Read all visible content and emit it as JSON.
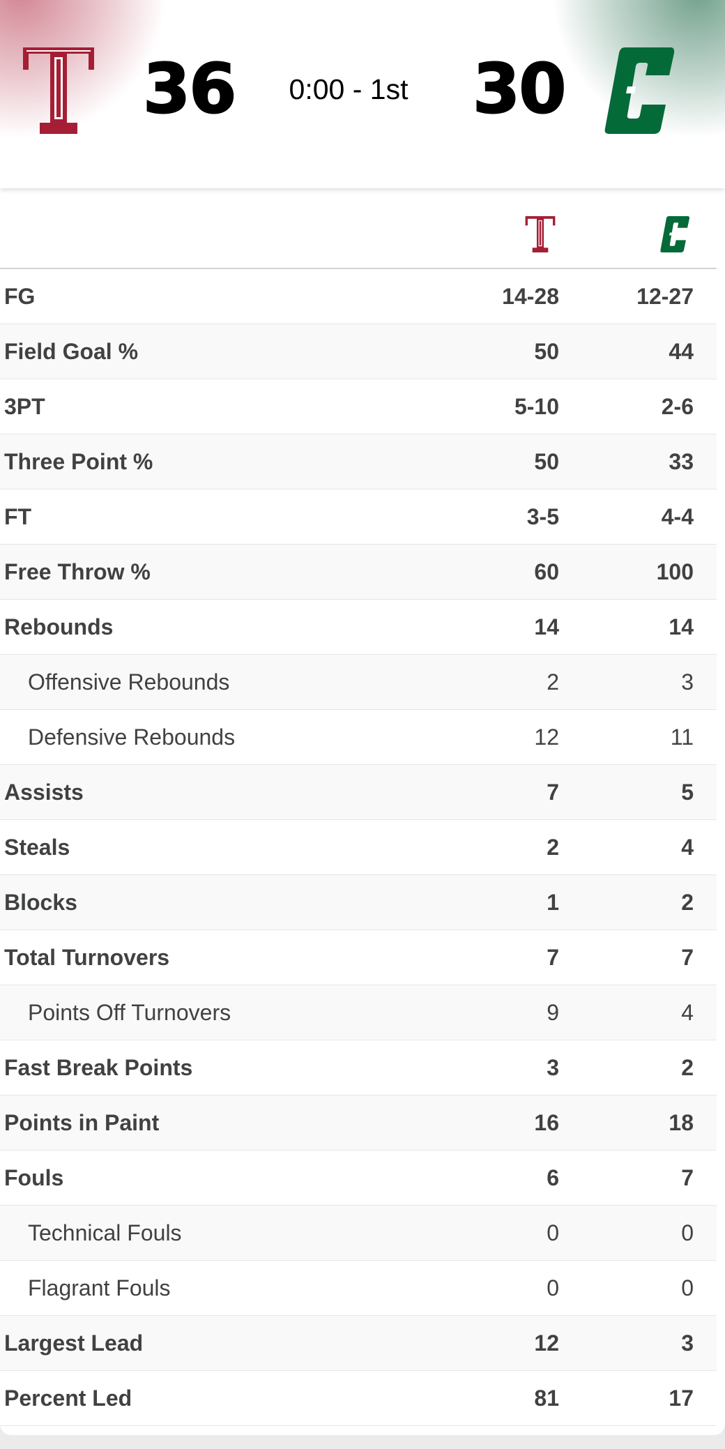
{
  "game": {
    "home_score": "36",
    "away_score": "30",
    "clock": "0:00 - 1st"
  },
  "teams": {
    "home": {
      "logo_icon": "temple-t-logo-icon",
      "color": "#9d2235"
    },
    "away": {
      "logo_icon": "charlotte-c-logo-icon",
      "color": "#005035"
    }
  },
  "stats": [
    {
      "label": "FG",
      "home": "14-28",
      "away": "12-27",
      "sub": false
    },
    {
      "label": "Field Goal %",
      "home": "50",
      "away": "44",
      "sub": false
    },
    {
      "label": "3PT",
      "home": "5-10",
      "away": "2-6",
      "sub": false
    },
    {
      "label": "Three Point %",
      "home": "50",
      "away": "33",
      "sub": false
    },
    {
      "label": "FT",
      "home": "3-5",
      "away": "4-4",
      "sub": false
    },
    {
      "label": "Free Throw %",
      "home": "60",
      "away": "100",
      "sub": false
    },
    {
      "label": "Rebounds",
      "home": "14",
      "away": "14",
      "sub": false
    },
    {
      "label": "Offensive Rebounds",
      "home": "2",
      "away": "3",
      "sub": true
    },
    {
      "label": "Defensive Rebounds",
      "home": "12",
      "away": "11",
      "sub": true
    },
    {
      "label": "Assists",
      "home": "7",
      "away": "5",
      "sub": false
    },
    {
      "label": "Steals",
      "home": "2",
      "away": "4",
      "sub": false
    },
    {
      "label": "Blocks",
      "home": "1",
      "away": "2",
      "sub": false
    },
    {
      "label": "Total Turnovers",
      "home": "7",
      "away": "7",
      "sub": false
    },
    {
      "label": "Points Off Turnovers",
      "home": "9",
      "away": "4",
      "sub": true
    },
    {
      "label": "Fast Break Points",
      "home": "3",
      "away": "2",
      "sub": false
    },
    {
      "label": "Points in Paint",
      "home": "16",
      "away": "18",
      "sub": false
    },
    {
      "label": "Fouls",
      "home": "6",
      "away": "7",
      "sub": false
    },
    {
      "label": "Technical Fouls",
      "home": "0",
      "away": "0",
      "sub": true
    },
    {
      "label": "Flagrant Fouls",
      "home": "0",
      "away": "0",
      "sub": true
    },
    {
      "label": "Largest Lead",
      "home": "12",
      "away": "3",
      "sub": false
    },
    {
      "label": "Percent Led",
      "home": "81",
      "away": "17",
      "sub": false
    }
  ]
}
